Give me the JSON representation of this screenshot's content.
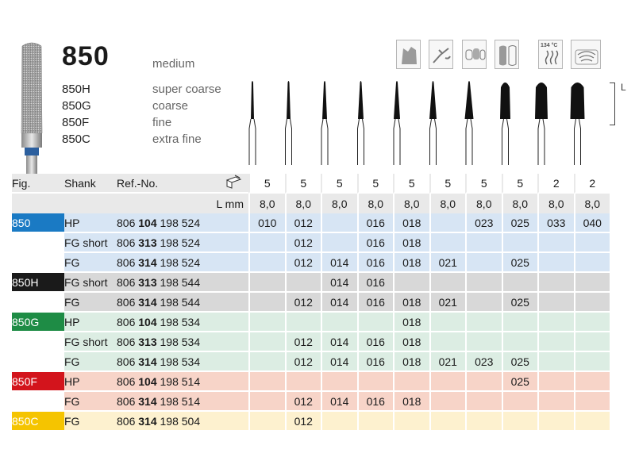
{
  "title": "850",
  "grit_main": "medium",
  "variants": [
    {
      "code": "850H",
      "grit": "super coarse"
    },
    {
      "code": "850G",
      "grit": "coarse"
    },
    {
      "code": "850F",
      "grit": "fine"
    },
    {
      "code": "850C",
      "grit": "extra fine"
    }
  ],
  "icons": [
    {
      "name": "crown-prep-icon"
    },
    {
      "name": "dental-tool-icon"
    },
    {
      "name": "teeth-bridge-icon"
    },
    {
      "name": "veneers-icon"
    },
    {
      "name": "sterilize-icon",
      "label": "134 °C"
    },
    {
      "name": "packaging-icon"
    }
  ],
  "length_label": "L",
  "table": {
    "headers": {
      "fig": "Fig.",
      "shank": "Shank",
      "ref": "Ref.-No.",
      "lmm": "L mm"
    },
    "pack": [
      "5",
      "5",
      "5",
      "5",
      "5",
      "5",
      "5",
      "5",
      "2",
      "2"
    ],
    "lengths": [
      "8,0",
      "8,0",
      "8,0",
      "8,0",
      "8,0",
      "8,0",
      "8,0",
      "8,0",
      "8,0",
      "8,0"
    ],
    "rows": [
      {
        "fig": "850",
        "color": "#1a7ac4",
        "group": "blue",
        "shank": "HP",
        "ref_a": "806",
        "ref_b": "104",
        "ref_c": "198 524",
        "sizes": [
          "010",
          "012",
          "",
          "016",
          "018",
          "",
          "023",
          "025",
          "033",
          "040"
        ]
      },
      {
        "fig": "",
        "color": "",
        "group": "blue",
        "shank": "FG short",
        "ref_a": "806",
        "ref_b": "313",
        "ref_c": "198 524",
        "sizes": [
          "",
          "012",
          "",
          "016",
          "018",
          "",
          "",
          "",
          "",
          ""
        ]
      },
      {
        "fig": "",
        "color": "",
        "group": "blue",
        "shank": "FG",
        "ref_a": "806",
        "ref_b": "314",
        "ref_c": "198 524",
        "sizes": [
          "",
          "012",
          "014",
          "016",
          "018",
          "021",
          "",
          "025",
          "",
          ""
        ]
      },
      {
        "fig": "850H",
        "color": "#1a1a1a",
        "group": "gray",
        "shank": "FG short",
        "ref_a": "806",
        "ref_b": "313",
        "ref_c": "198 544",
        "sizes": [
          "",
          "",
          "014",
          "016",
          "",
          "",
          "",
          "",
          "",
          ""
        ]
      },
      {
        "fig": "",
        "color": "",
        "group": "gray",
        "shank": "FG",
        "ref_a": "806",
        "ref_b": "314",
        "ref_c": "198 544",
        "sizes": [
          "",
          "012",
          "014",
          "016",
          "018",
          "021",
          "",
          "025",
          "",
          ""
        ]
      },
      {
        "fig": "850G",
        "color": "#1e8c45",
        "group": "green",
        "shank": "HP",
        "ref_a": "806",
        "ref_b": "104",
        "ref_c": "198 534",
        "sizes": [
          "",
          "",
          "",
          "",
          "018",
          "",
          "",
          "",
          "",
          ""
        ]
      },
      {
        "fig": "",
        "color": "",
        "group": "green",
        "shank": "FG short",
        "ref_a": "806",
        "ref_b": "313",
        "ref_c": "198 534",
        "sizes": [
          "",
          "012",
          "014",
          "016",
          "018",
          "",
          "",
          "",
          "",
          ""
        ]
      },
      {
        "fig": "",
        "color": "",
        "group": "green",
        "shank": "FG",
        "ref_a": "806",
        "ref_b": "314",
        "ref_c": "198 534",
        "sizes": [
          "",
          "012",
          "014",
          "016",
          "018",
          "021",
          "023",
          "025",
          "",
          ""
        ]
      },
      {
        "fig": "850F",
        "color": "#d3141c",
        "group": "red",
        "shank": "HP",
        "ref_a": "806",
        "ref_b": "104",
        "ref_c": "198 514",
        "sizes": [
          "",
          "",
          "",
          "",
          "",
          "",
          "",
          "025",
          "",
          ""
        ]
      },
      {
        "fig": "",
        "color": "",
        "group": "red",
        "shank": "FG",
        "ref_a": "806",
        "ref_b": "314",
        "ref_c": "198 514",
        "sizes": [
          "",
          "012",
          "014",
          "016",
          "018",
          "",
          "",
          "",
          "",
          ""
        ]
      },
      {
        "fig": "850C",
        "color": "#f5c400",
        "group": "yellow",
        "shank": "FG",
        "ref_a": "806",
        "ref_b": "314",
        "ref_c": "198 504",
        "sizes": [
          "",
          "012",
          "",
          "",
          "",
          "",
          "",
          "",
          "",
          ""
        ]
      }
    ]
  }
}
